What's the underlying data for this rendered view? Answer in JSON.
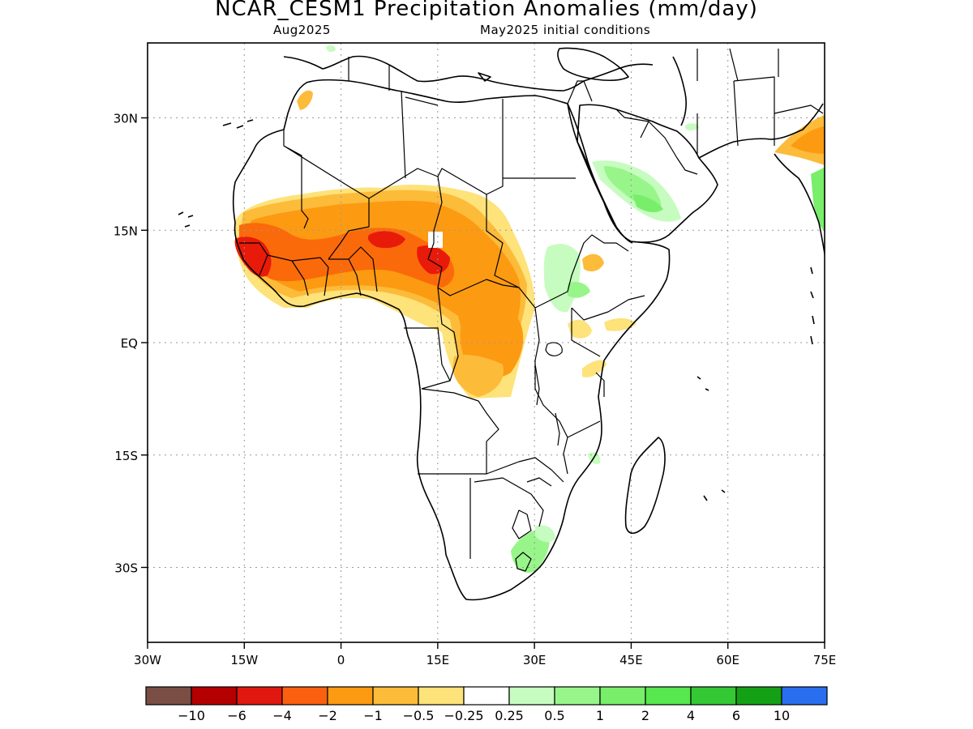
{
  "header": {
    "title": "NCAR_CESM1 Precipitation Anomalies (mm/day)",
    "valid_month": "Aug2025",
    "initial_conditions": "May2025 initial conditions"
  },
  "map": {
    "lon_range": [
      -30,
      75
    ],
    "lat_range": [
      -40,
      40
    ],
    "x_ticks": [
      {
        "lon": -30,
        "label": "30W"
      },
      {
        "lon": -15,
        "label": "15W"
      },
      {
        "lon": 0,
        "label": "0"
      },
      {
        "lon": 15,
        "label": "15E"
      },
      {
        "lon": 30,
        "label": "30E"
      },
      {
        "lon": 45,
        "label": "45E"
      },
      {
        "lon": 60,
        "label": "60E"
      },
      {
        "lon": 75,
        "label": "75E"
      }
    ],
    "y_ticks": [
      {
        "lat": 30,
        "label": "30N"
      },
      {
        "lat": 15,
        "label": "15N"
      },
      {
        "lat": 0,
        "label": "EQ"
      },
      {
        "lat": -15,
        "label": "15S"
      },
      {
        "lat": -30,
        "label": "30S"
      }
    ],
    "grid": "dotted",
    "anomaly_colors": {
      "-4": "#e81a0a",
      "-2": "#fb6a0a",
      "-1": "#fc9a12",
      "-0.5": "#fdbb3a",
      "-0.25": "#fee27a",
      "0.25": "#c7fcc0",
      "0.5": "#98f58a",
      "1": "#78ee6a"
    }
  },
  "colorbar": {
    "colors": [
      "#7a4e44",
      "#b40000",
      "#e01810",
      "#fb6010",
      "#fc9a12",
      "#fdbb3a",
      "#fee27a",
      "#ffffff",
      "#c7fcc0",
      "#98f58a",
      "#78ee6a",
      "#56e84e",
      "#34c834",
      "#14a014",
      "#2a6ef0"
    ],
    "labels": [
      "−10",
      "−6",
      "−4",
      "−2",
      "−1",
      "−0.5",
      "−0.25",
      "0.25",
      "0.5",
      "1",
      "2",
      "4",
      "6",
      "10"
    ]
  }
}
